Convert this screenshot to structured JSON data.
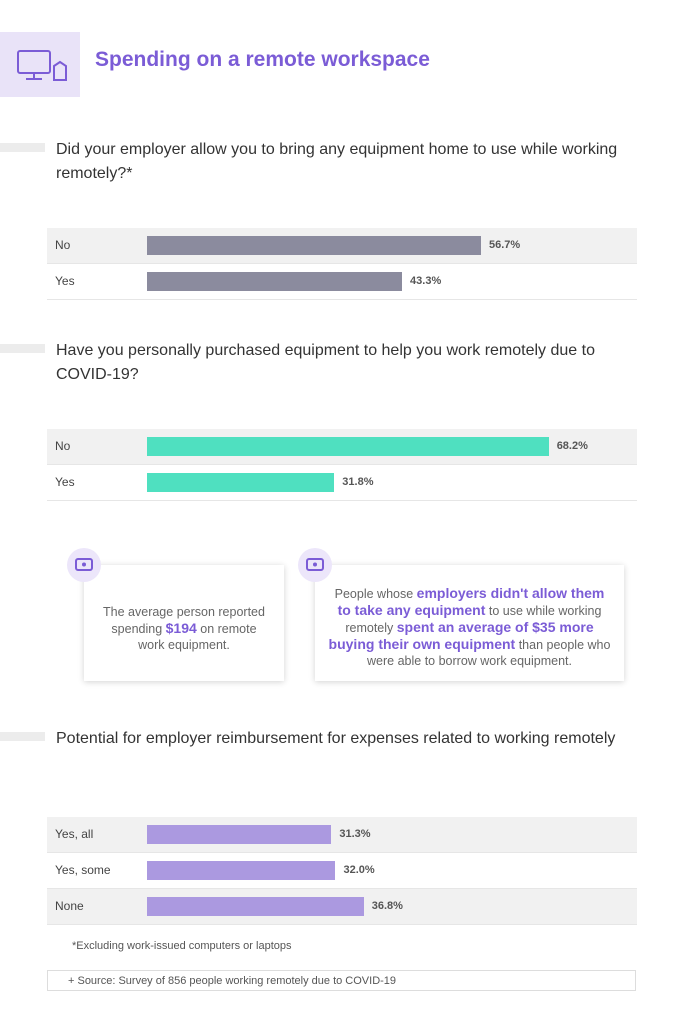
{
  "header": {
    "title": "Spending on a remote workspace"
  },
  "chart_data": [
    {
      "type": "bar",
      "title": "Did your employer allow you to bring any equipment home to use while working remotely?*",
      "categories": [
        "No",
        "Yes"
      ],
      "values": [
        56.7,
        43.3
      ],
      "value_labels": [
        "56.7%",
        "43.3%"
      ],
      "color": "#8b8b9e"
    },
    {
      "type": "bar",
      "title": "Have you personally purchased equipment to help you work remotely due to COVID-19?",
      "categories": [
        "No",
        "Yes"
      ],
      "values": [
        68.2,
        31.8
      ],
      "value_labels": [
        "68.2%",
        "31.8%"
      ],
      "color": "#4fe0c0"
    },
    {
      "type": "bar",
      "title": "Potential for employer reimbursement for expenses related to working remotely",
      "categories": [
        "Yes, all",
        "Yes, some",
        "None"
      ],
      "values": [
        31.3,
        32.0,
        36.8
      ],
      "value_labels": [
        "31.3%",
        "32.0%",
        "36.8%"
      ],
      "color": "#ab99e0"
    }
  ],
  "callouts": [
    {
      "parts": [
        {
          "text": "The average person reported spending "
        },
        {
          "strong": "$194"
        },
        {
          "text": " on remote work equipment."
        }
      ]
    },
    {
      "parts": [
        {
          "text": "People whose "
        },
        {
          "strong": "employers didn't allow them to take any equipment"
        },
        {
          "text": " to use while working remotely "
        },
        {
          "strong": "spent an average of $35 more buying their own equipment"
        },
        {
          "text": " than people who were able to borrow work equipment."
        }
      ]
    }
  ],
  "footnote": "*Excluding work-issued computers or laptops",
  "source": "+ Source: Survey of 856 people working remotely due to COVID-19"
}
